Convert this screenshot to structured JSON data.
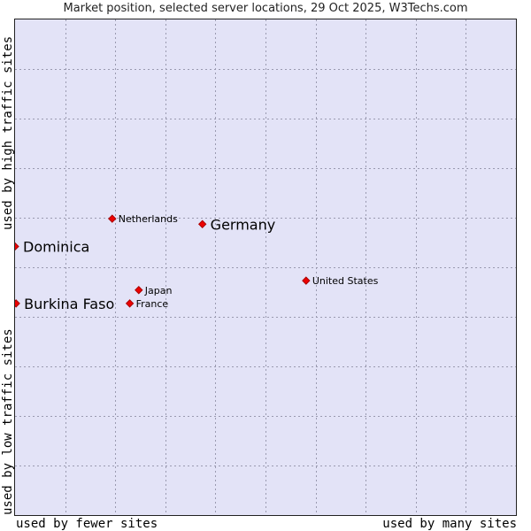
{
  "chart_data": {
    "type": "scatter",
    "title": "Market position, selected server locations, 29 Oct 2025, W3Techs.com",
    "xlabel_low": "used by fewer sites",
    "xlabel_high": "used by many sites",
    "ylabel_low": "used by low traffic sites",
    "ylabel_high": "used by high traffic sites",
    "xlim": [
      0,
      100
    ],
    "ylim": [
      0,
      100
    ],
    "grid": true,
    "points": [
      {
        "label": "Netherlands",
        "x": 19.4,
        "y": 59.8,
        "emphasis": false
      },
      {
        "label": "Germany",
        "x": 37.4,
        "y": 58.7,
        "emphasis": true
      },
      {
        "label": "Dominica",
        "x": 0.0,
        "y": 54.2,
        "emphasis": true
      },
      {
        "label": "United States",
        "x": 58.1,
        "y": 47.3,
        "emphasis": false
      },
      {
        "label": "Japan",
        "x": 24.7,
        "y": 45.4,
        "emphasis": false
      },
      {
        "label": "Burkina Faso",
        "x": 0.2,
        "y": 42.7,
        "emphasis": true
      },
      {
        "label": "France",
        "x": 22.9,
        "y": 42.7,
        "emphasis": false
      }
    ]
  }
}
